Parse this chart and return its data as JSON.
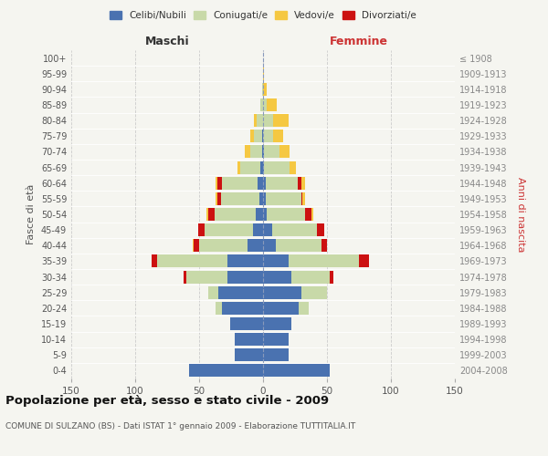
{
  "age_groups": [
    "0-4",
    "5-9",
    "10-14",
    "15-19",
    "20-24",
    "25-29",
    "30-34",
    "35-39",
    "40-44",
    "45-49",
    "50-54",
    "55-59",
    "60-64",
    "65-69",
    "70-74",
    "75-79",
    "80-84",
    "85-89",
    "90-94",
    "95-99",
    "100+"
  ],
  "birth_years": [
    "2004-2008",
    "1999-2003",
    "1994-1998",
    "1989-1993",
    "1984-1988",
    "1979-1983",
    "1974-1978",
    "1969-1973",
    "1964-1968",
    "1959-1963",
    "1954-1958",
    "1949-1953",
    "1944-1948",
    "1939-1943",
    "1934-1938",
    "1929-1933",
    "1924-1928",
    "1919-1923",
    "1914-1918",
    "1909-1913",
    "≤ 1908"
  ],
  "colors": {
    "celibi": "#4A72B0",
    "coniugati": "#c8d9a8",
    "vedovi": "#f5c842",
    "divorziati": "#cc1111"
  },
  "maschi": {
    "celibi": [
      58,
      22,
      22,
      26,
      32,
      35,
      28,
      28,
      12,
      8,
      6,
      3,
      4,
      2,
      1,
      1,
      0,
      0,
      0,
      0,
      0
    ],
    "coniugati": [
      0,
      0,
      0,
      0,
      5,
      8,
      32,
      55,
      38,
      38,
      32,
      30,
      28,
      16,
      9,
      6,
      5,
      2,
      1,
      0,
      0
    ],
    "vedovi": [
      0,
      0,
      0,
      0,
      0,
      0,
      0,
      0,
      1,
      0,
      1,
      1,
      1,
      2,
      4,
      3,
      2,
      0,
      0,
      0,
      0
    ],
    "divorziati": [
      0,
      0,
      0,
      0,
      0,
      0,
      2,
      4,
      4,
      5,
      5,
      3,
      4,
      0,
      0,
      0,
      0,
      0,
      0,
      0,
      0
    ]
  },
  "femmine": {
    "celibi": [
      52,
      20,
      20,
      22,
      28,
      30,
      22,
      20,
      10,
      7,
      3,
      2,
      2,
      1,
      1,
      0,
      0,
      0,
      0,
      0,
      0
    ],
    "coniugati": [
      0,
      0,
      0,
      0,
      8,
      20,
      30,
      55,
      36,
      35,
      30,
      28,
      25,
      20,
      12,
      8,
      8,
      3,
      0,
      0,
      0
    ],
    "vedovi": [
      0,
      0,
      0,
      0,
      0,
      0,
      0,
      0,
      0,
      0,
      1,
      2,
      3,
      5,
      8,
      8,
      12,
      8,
      3,
      1,
      0
    ],
    "divorziati": [
      0,
      0,
      0,
      0,
      0,
      0,
      3,
      8,
      4,
      6,
      5,
      1,
      3,
      0,
      0,
      0,
      0,
      0,
      0,
      0,
      0
    ]
  },
  "xlim": 150,
  "title": "Popolazione per età, sesso e stato civile - 2009",
  "subtitle": "COMUNE DI SULZANO (BS) - Dati ISTAT 1° gennaio 2009 - Elaborazione TUTTITALIA.IT",
  "ylabel_left": "Fasce di età",
  "ylabel_right": "Anni di nascita",
  "xlabel_maschi": "Maschi",
  "xlabel_femmine": "Femmine",
  "legend_labels": [
    "Celibi/Nubili",
    "Coniugati/e",
    "Vedovi/e",
    "Divorziati/e"
  ],
  "background_color": "#f5f5f0",
  "grid_color": "#cccccc"
}
